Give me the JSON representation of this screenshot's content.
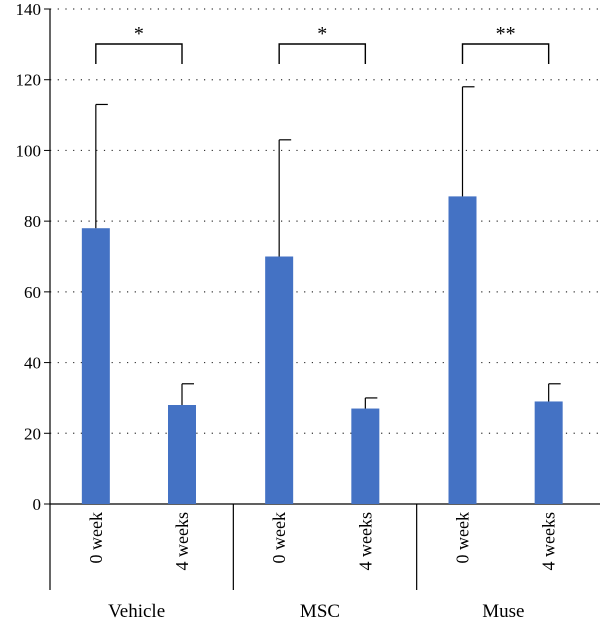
{
  "chart_data": {
    "type": "bar",
    "title": "",
    "xlabel": "",
    "ylabel": "",
    "ylim": [
      0,
      140
    ],
    "yticks": [
      0,
      20,
      40,
      60,
      80,
      100,
      120,
      140
    ],
    "grid": "horizontal-dotted",
    "bar_color": "#4472C4",
    "groups": [
      {
        "name": "Vehicle",
        "bars": [
          {
            "label": "0 week",
            "value": 78,
            "error": 35
          },
          {
            "label": "4 weeks",
            "value": 28,
            "error": 6
          }
        ],
        "significance": "*"
      },
      {
        "name": "MSC",
        "bars": [
          {
            "label": "0 week",
            "value": 70,
            "error": 33
          },
          {
            "label": "4 weeks",
            "value": 27,
            "error": 3
          }
        ],
        "significance": "*"
      },
      {
        "name": "Muse",
        "bars": [
          {
            "label": "0 week",
            "value": 87,
            "error": 31
          },
          {
            "label": "4 weeks",
            "value": 29,
            "error": 5
          }
        ],
        "significance": "**"
      }
    ]
  }
}
